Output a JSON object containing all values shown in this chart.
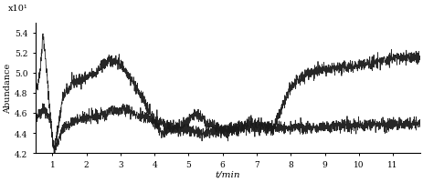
{
  "xlim": [
    0.5,
    11.8
  ],
  "ylim": [
    4.2,
    5.5
  ],
  "yticks": [
    4.2,
    4.4,
    4.6,
    4.8,
    5.0,
    5.2,
    5.4
  ],
  "xticks": [
    1,
    2,
    3,
    4,
    5,
    6,
    7,
    8,
    9,
    10,
    11
  ],
  "xlabel": "t/min",
  "ylabel": "Abundance",
  "sci_label": "x10¹",
  "background_color": "#ffffff",
  "line_color": "#1a1a1a",
  "seed": 42,
  "noise_scale": 0.03
}
